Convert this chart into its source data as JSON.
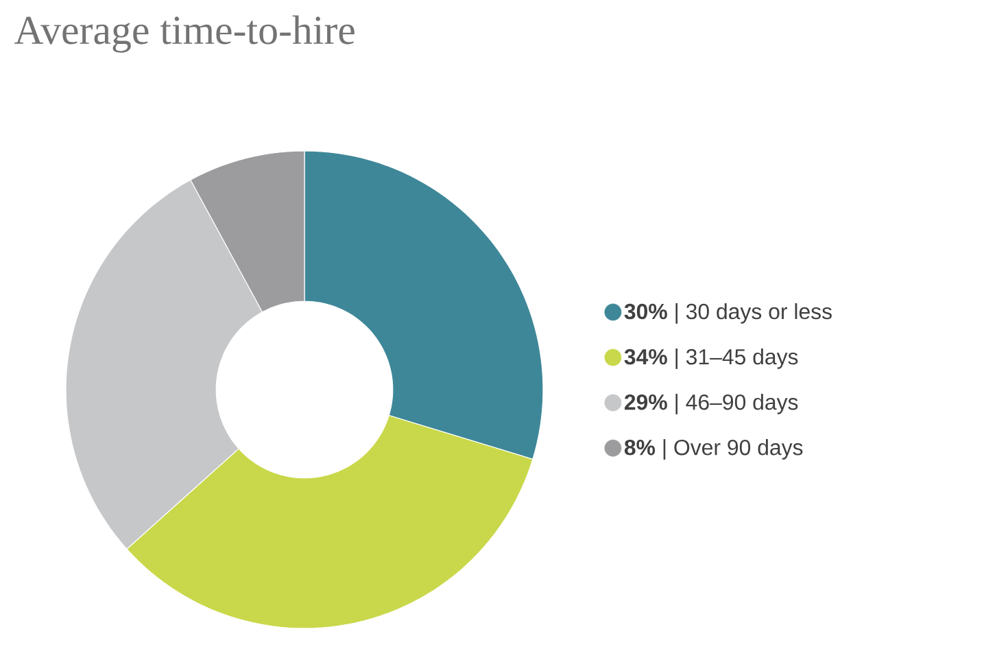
{
  "chart_data": {
    "type": "donut",
    "title": "Average time-to-hire",
    "categories": [
      "**30%**  |  30 days or less",
      "**34%**  |  31–45 days",
      "**29%**  |  46–90 days",
      "**8%**    |  Over 90 days"
    ],
    "values": [
      30,
      34,
      29,
      8
    ],
    "colors": [
      "#3e8798",
      "#c9d84a",
      "#c6c7c9",
      "#9c9c9e"
    ],
    "legend": "right"
  }
}
